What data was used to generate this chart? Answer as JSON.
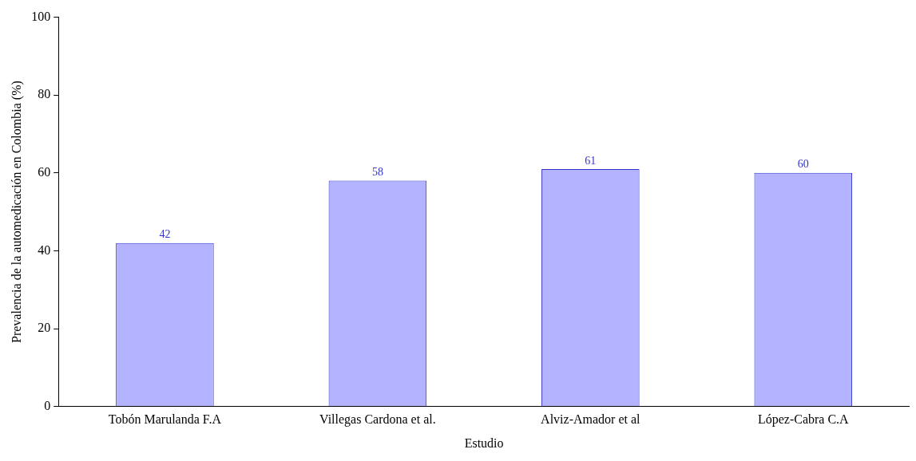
{
  "chart_data": {
    "type": "bar",
    "xlabel": "Estudio",
    "ylabel": "Prevalencia de la automedicación en Colombia (%)",
    "categories": [
      "Tobón Marulanda F.A",
      "Villegas Cardona et al.",
      "Alviz-Amador et al",
      "López-Cabra C.A"
    ],
    "values": [
      42,
      58,
      61,
      60
    ],
    "color": "#b3b3ff",
    "ylim": [
      0,
      100
    ],
    "yticks": [
      0,
      20,
      40,
      60,
      80,
      100
    ],
    "grid": false,
    "data_labels": true,
    "legend": false
  }
}
